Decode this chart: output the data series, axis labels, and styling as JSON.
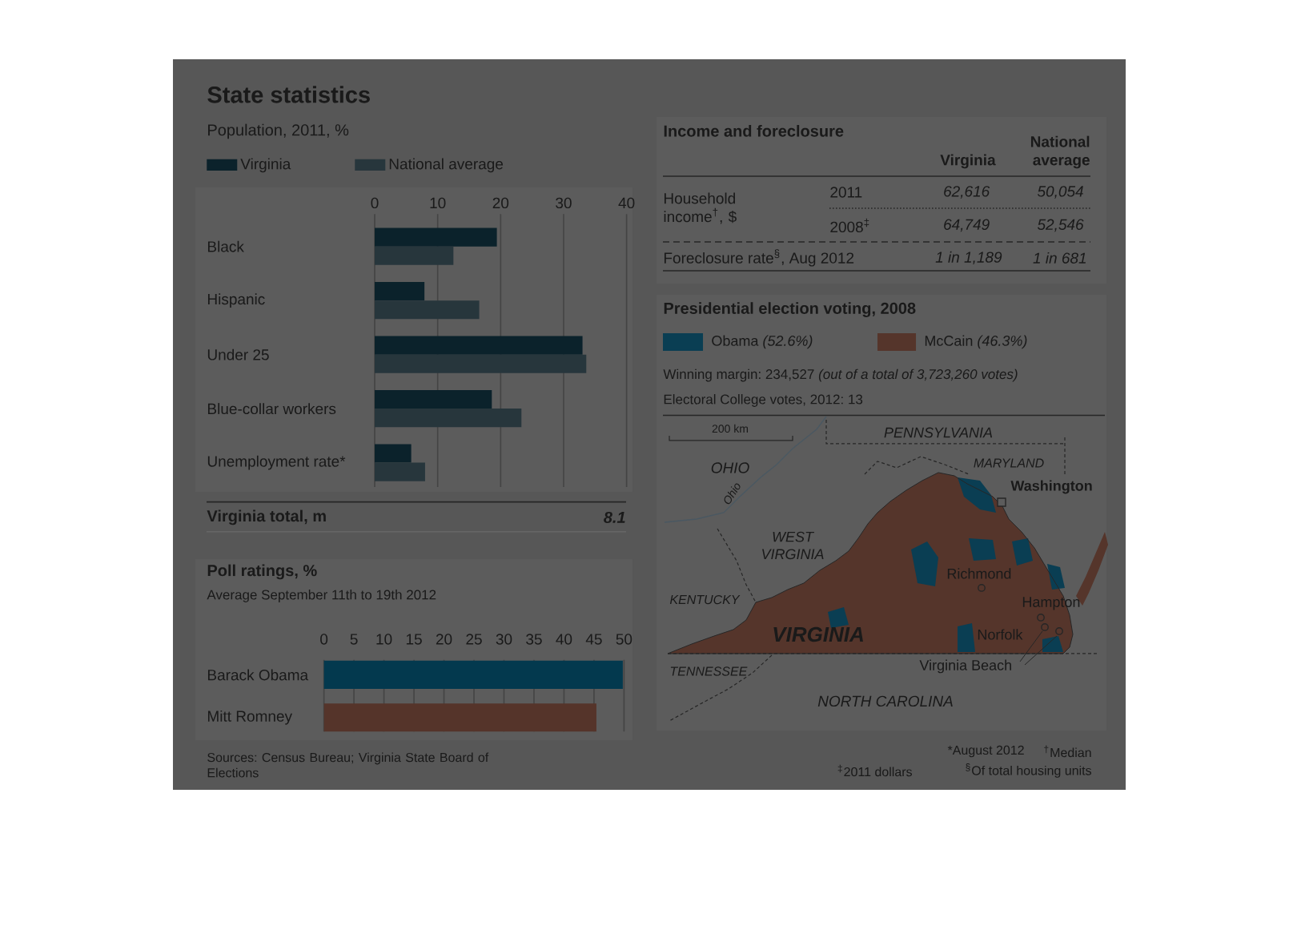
{
  "chart_data": [
    {
      "type": "bar",
      "orientation": "horizontal",
      "title": "State statistics",
      "subtitle": "Population, 2011, %",
      "categories": [
        "Black",
        "Hispanic",
        "Under 25",
        "Blue-collar workers",
        "Unemployment rate*"
      ],
      "series": [
        {
          "name": "Virginia",
          "color": "#0b222b",
          "values": [
            19.4,
            7.9,
            33.0,
            18.6,
            5.8
          ]
        },
        {
          "name": "National average",
          "color": "#27363c",
          "values": [
            12.5,
            16.6,
            33.6,
            23.3,
            8.0
          ]
        }
      ],
      "xlim": [
        0,
        40
      ],
      "xticks": [
        0,
        10,
        20,
        30,
        40
      ],
      "grid": "x",
      "legend": "top left",
      "annotations": [
        "Virginia total, m",
        "8.1"
      ]
    },
    {
      "type": "bar",
      "orientation": "horizontal",
      "title": "Poll ratings, %",
      "subtitle": "Average September 11th to 19th 2012",
      "categories": [
        "Barack Obama",
        "Mitt Romney"
      ],
      "values": [
        49.8,
        45.4
      ],
      "colors": [
        "#03394e",
        "#55342a"
      ],
      "xlim": [
        0,
        50
      ],
      "xticks": [
        0,
        5,
        10,
        15,
        20,
        25,
        30,
        35,
        40,
        45,
        50
      ],
      "grid": "x",
      "annotations": [
        "Sources: Census Bureau; Virginia State Board of Elections"
      ]
    },
    {
      "type": "other",
      "title": "Income and foreclosure",
      "annotations": [
        "Virginia",
        "National average",
        "Household income$^{†}$, $",
        "2011",
        "62,616",
        "50,054",
        "2008$^{‡}$",
        "64,749",
        "52,546",
        "Foreclosure rate$^{§}$, Aug 2012",
        "1 in 1,189",
        "1 in 681"
      ]
    },
    {
      "type": "other",
      "title": "Presidential election voting, 2008",
      "categories": [
        "Obama *(52.6%)*",
        "McCain *(46.3%)*"
      ],
      "colors": [
        "#0a3e53",
        "#55352b"
      ],
      "annotations": [
        "Winning margin: 234,527 *(out of a total of 3,723,260 votes)*",
        "Electoral College votes, 2012: 13",
        "200 km",
        "PENNSYLVANIA",
        "MARYLAND",
        "Washington",
        "OHIO",
        "Ohio",
        "WEST VIRGINIA",
        "KENTUCKY",
        "VIRGINIA",
        "Richmond",
        "Hampton",
        "Norfolk",
        "Virginia Beach",
        "TENNESSEE",
        "NORTH CAROLINA",
        "*August 2012",
        "$^{†}$Median",
        "$^{‡}$2011 dollars",
        "$^{§}$Of total housing units"
      ]
    }
  ]
}
